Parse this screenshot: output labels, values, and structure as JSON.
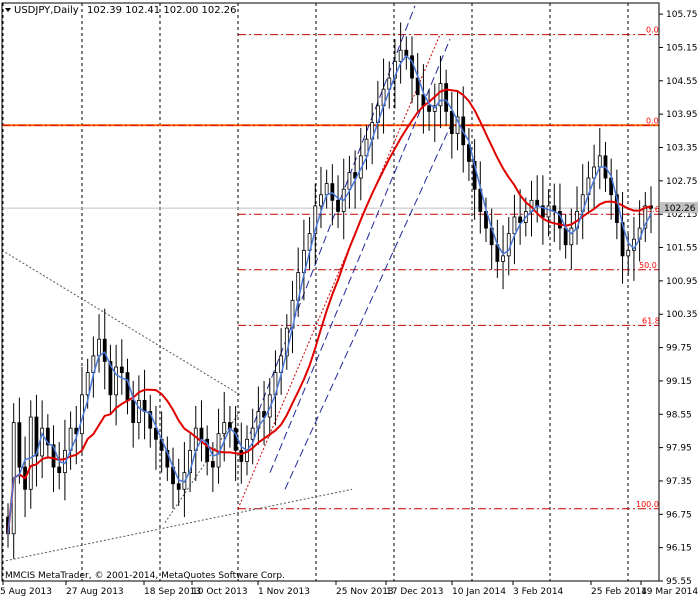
{
  "header": {
    "symbol": "USDJPY,Daily",
    "ohlc": "102.39 102.41 102.00 102.26"
  },
  "copyright": "MMCIS MetaTrader, © 2001-2014, MetaQuotes Software Corp.",
  "price_tag": "102.26",
  "chart_data": {
    "type": "candlestick",
    "title": "USDJPY,Daily",
    "ylim": [
      95.55,
      105.95
    ],
    "y_ticks": [
      "105.75",
      "105.15",
      "104.55",
      "103.95",
      "103.35",
      "102.75",
      "102.15",
      "101.55",
      "100.95",
      "100.35",
      "99.75",
      "99.15",
      "98.55",
      "97.95",
      "97.35",
      "96.75",
      "96.15",
      "95.55"
    ],
    "x_labels": [
      "5 Aug 2013",
      "27 Aug 2013",
      "18 Sep 2013",
      "10 Oct 2013",
      "1 Nov 2013",
      "25 Nov 2013",
      "17 Dec 2013",
      "10 Jan 2014",
      "3 Feb 2014",
      "25 Feb 2014",
      "19 Mar 2014"
    ],
    "current_price": 102.26,
    "horizontal_lines": [
      {
        "name": "resistance",
        "value": 103.75,
        "color": "#ff6600"
      },
      {
        "name": "current",
        "value": 102.26,
        "color": "#c0c0c0"
      }
    ],
    "fib_levels": [
      {
        "label": "0.0",
        "value": 105.38
      },
      {
        "label": "0.0",
        "value": 103.75
      },
      {
        "label": "23.6",
        "value": 102.15
      },
      {
        "label": "50.0",
        "value": 101.15
      },
      {
        "label": "61.8",
        "value": 100.15
      },
      {
        "label": "100.0",
        "value": 96.85
      }
    ],
    "close_series": [
      96.4,
      98.4,
      97.6,
      97.2,
      98.5,
      97.8,
      98.3,
      98.0,
      97.6,
      97.5,
      97.9,
      98.3,
      98.2,
      98.9,
      99.3,
      99.6,
      99.9,
      99.5,
      98.9,
      99.4,
      99.3,
      98.8,
      98.4,
      98.8,
      98.6,
      98.3,
      98.1,
      97.9,
      97.6,
      97.3,
      97.2,
      97.5,
      97.9,
      98.3,
      98.1,
      97.7,
      97.6,
      98.2,
      98.4,
      98.3,
      97.9,
      97.7,
      98.1,
      98.3,
      98.6,
      98.5,
      98.9,
      99.3,
      99.6,
      100.1,
      100.6,
      101.1,
      101.5,
      101.8,
      102.3,
      102.5,
      102.7,
      102.4,
      102.2,
      102.6,
      102.9,
      102.8,
      103.2,
      103.5,
      103.8,
      104.1,
      104.4,
      104.6,
      104.9,
      105.1,
      105.0,
      104.6,
      104.3,
      104.1,
      104.0,
      104.1,
      104.5,
      104.0,
      103.6,
      103.9,
      103.4,
      103.1,
      102.6,
      102.2,
      101.9,
      101.6,
      101.3,
      101.4,
      101.8,
      102.1,
      102.0,
      102.2,
      102.4,
      102.3,
      102.1,
      102.3,
      102.2,
      101.9,
      101.6,
      101.9,
      102.2,
      102.5,
      102.8,
      103.0,
      103.2,
      102.8,
      102.5,
      102.0,
      101.4,
      101.5,
      101.7,
      101.9,
      102.3,
      102.26
    ]
  }
}
